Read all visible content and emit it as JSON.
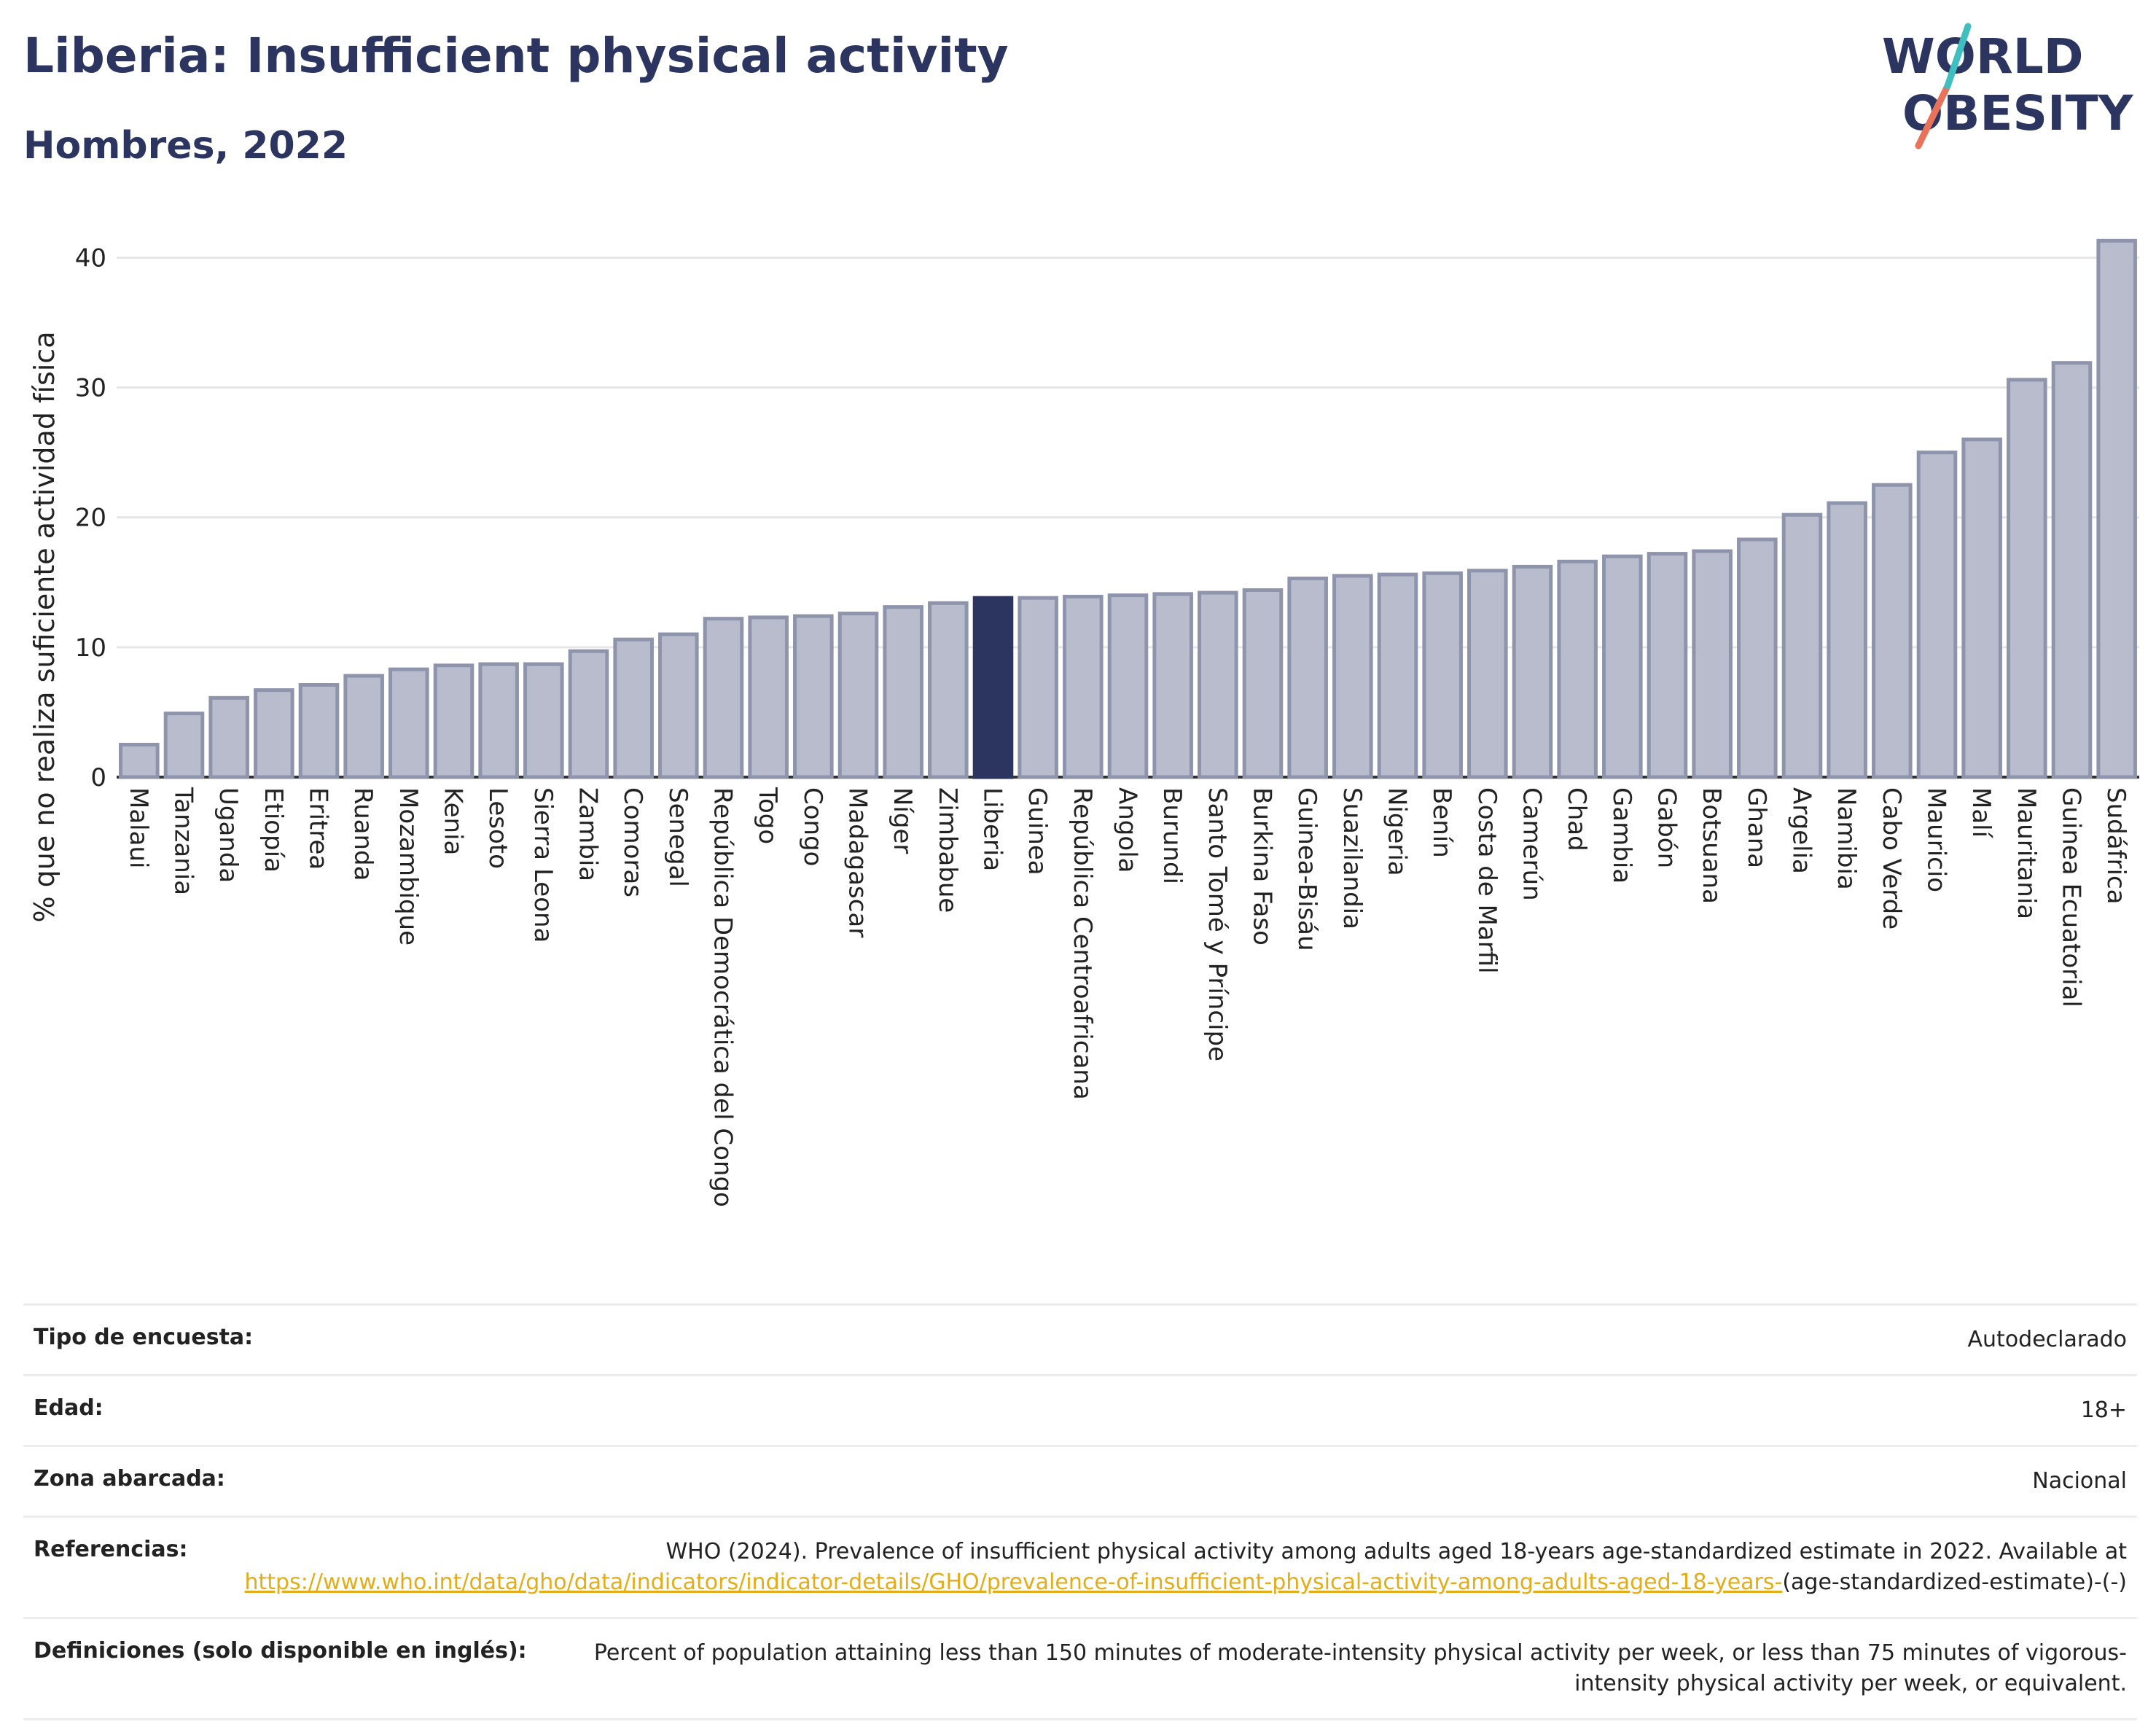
{
  "header": {
    "title": "Liberia: Insufficient physical activity",
    "subtitle": "Hombres, 2022"
  },
  "logo": {
    "line1": "WORLD",
    "line2": "OBESITY",
    "accent": "#e8735a",
    "accent2": "#3fbfbf"
  },
  "colors": {
    "bar": "#b9bccc",
    "bar_stroke": "#8f94ad",
    "highlight": "#2c3560",
    "grid": "#e6e6e6"
  },
  "chart_data": {
    "type": "bar",
    "ylabel": "% que no realiza suficiente actividad física",
    "ylim": [
      0,
      43
    ],
    "yticks": [
      0,
      10,
      20,
      30,
      40
    ],
    "highlight": "Liberia",
    "categories": [
      "Malaui",
      "Tanzania",
      "Uganda",
      "Etiopía",
      "Eritrea",
      "Ruanda",
      "Mozambique",
      "Kenia",
      "Lesoto",
      "Sierra Leona",
      "Zambia",
      "Comoras",
      "Senegal",
      "República Democrática del Congo",
      "Togo",
      "Congo",
      "Madagascar",
      "Níger",
      "Zimbabue",
      "Liberia",
      "Guinea",
      "República Centroafricana",
      "Angola",
      "Burundi",
      "Santo Tomé y Príncipe",
      "Burkina Faso",
      "Guinea-Bisáu",
      "Suazilandia",
      "Nigeria",
      "Benín",
      "Costa de Marfil",
      "Camerún",
      "Chad",
      "Gambia",
      "Gabón",
      "Botsuana",
      "Ghana",
      "Argelia",
      "Namibia",
      "Cabo Verde",
      "Mauricio",
      "Malí",
      "Mauritania",
      "Guinea Ecuatorial",
      "Sudáfrica"
    ],
    "values": [
      2.5,
      4.9,
      6.1,
      6.7,
      7.1,
      7.8,
      8.3,
      8.6,
      8.7,
      8.7,
      9.7,
      10.6,
      11.0,
      12.2,
      12.3,
      12.4,
      12.6,
      13.1,
      13.4,
      13.8,
      13.8,
      13.9,
      14.0,
      14.1,
      14.2,
      14.4,
      15.3,
      15.5,
      15.6,
      15.7,
      15.9,
      16.2,
      16.6,
      17.0,
      17.2,
      17.4,
      18.3,
      20.2,
      21.1,
      22.5,
      25.0,
      26.0,
      30.6,
      31.9,
      41.3
    ]
  },
  "info": {
    "survey_label": "Tipo de encuesta:",
    "survey_value": "Autodeclarado",
    "age_label": "Edad:",
    "age_value": "18+",
    "area_label": "Zona abarcada:",
    "area_value": "Nacional",
    "ref_label": "Referencias:",
    "ref_text": "WHO (2024). Prevalence of insufficient physical activity among adults aged 18-years age-standardized estimate in 2022. Available at",
    "ref_link": "https://www.who.int/data/gho/data/indicators/indicator-details/GHO/prevalence-of-insufficient-physical-activity-among-adults-aged-18-years-",
    "ref_tail": "(age-standardized-estimate)-(-)",
    "def_label": "Definiciones (solo disponible en inglés):",
    "def_value": "Percent of population attaining less than 150 minutes of moderate-intensity physical activity per week, or less than 75 minutes of vigorous-intensity physical activity per week, or equivalent."
  }
}
